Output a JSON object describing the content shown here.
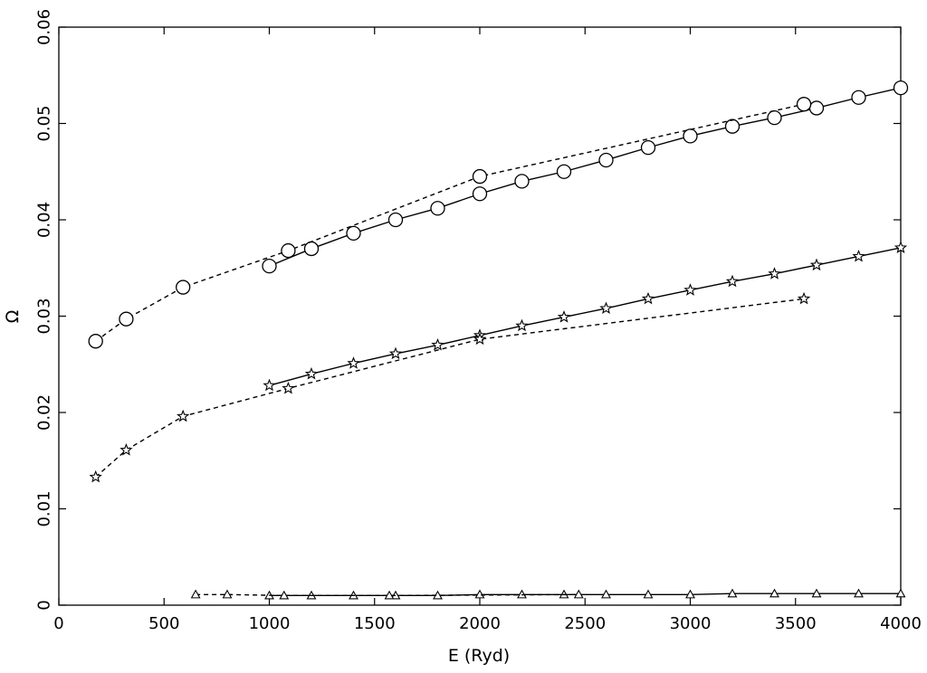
{
  "chart_data": {
    "type": "line",
    "title": "",
    "xlabel": "E (Ryd)",
    "ylabel": "Ω",
    "xlim": [
      0,
      4000
    ],
    "ylim": [
      0,
      0.06
    ],
    "x_ticks": [
      0,
      500,
      1000,
      1500,
      2000,
      2500,
      3000,
      3500,
      4000
    ],
    "y_ticks": [
      0,
      0.01,
      0.02,
      0.03,
      0.04,
      0.05,
      0.06
    ],
    "x_tick_labels": [
      "0",
      "500",
      "1000",
      "1500",
      "2000",
      "2500",
      "3000",
      "3500",
      "4000"
    ],
    "y_tick_labels": [
      "0",
      "0.01",
      "0.02",
      "0.03",
      "0.04",
      "0.05",
      "0.06"
    ],
    "grid": false,
    "legend": "none",
    "series": [
      {
        "marker": "circle",
        "line": "solid",
        "x": [
          1000,
          1200,
          1400,
          1600,
          1800,
          2000,
          2200,
          2400,
          2600,
          2800,
          3000,
          3200,
          3400,
          3600,
          3800,
          4000
        ],
        "y": [
          0.0352,
          0.037,
          0.0386,
          0.04,
          0.0412,
          0.0427,
          0.044,
          0.045,
          0.0462,
          0.0475,
          0.0487,
          0.0497,
          0.0506,
          0.0516,
          0.0527,
          0.0537
        ]
      },
      {
        "marker": "circle",
        "line": "dashed",
        "x": [
          175,
          320,
          590,
          1090,
          2000,
          3540
        ],
        "y": [
          0.0274,
          0.0297,
          0.033,
          0.0368,
          0.0445,
          0.052
        ]
      },
      {
        "marker": "star",
        "line": "solid",
        "x": [
          1000,
          1200,
          1400,
          1600,
          1800,
          2000,
          2200,
          2400,
          2600,
          2800,
          3000,
          3200,
          3400,
          3600,
          3800,
          4000
        ],
        "y": [
          0.0228,
          0.024,
          0.0251,
          0.0261,
          0.027,
          0.028,
          0.029,
          0.0299,
          0.0308,
          0.0318,
          0.0327,
          0.0336,
          0.0344,
          0.0353,
          0.0362,
          0.0371
        ]
      },
      {
        "marker": "star",
        "line": "dashed",
        "x": [
          175,
          320,
          590,
          1090,
          2000,
          3540
        ],
        "y": [
          0.0133,
          0.0161,
          0.0196,
          0.0225,
          0.0276,
          0.0318
        ]
      },
      {
        "marker": "triangle",
        "line": "solid",
        "x": [
          1000,
          1200,
          1400,
          1600,
          1800,
          2000,
          2200,
          2400,
          2600,
          2800,
          3000,
          3200,
          3400,
          3600,
          3800,
          4000
        ],
        "y": [
          0.001,
          0.001,
          0.001,
          0.001,
          0.001,
          0.0011,
          0.0011,
          0.0011,
          0.0011,
          0.0011,
          0.0011,
          0.0012,
          0.0012,
          0.0012,
          0.0012,
          0.0012
        ]
      },
      {
        "marker": "triangle",
        "line": "dashed",
        "x": [
          650,
          800,
          1070,
          1570,
          2470
        ],
        "y": [
          0.0011,
          0.0011,
          0.001,
          0.001,
          0.0011
        ]
      }
    ]
  }
}
